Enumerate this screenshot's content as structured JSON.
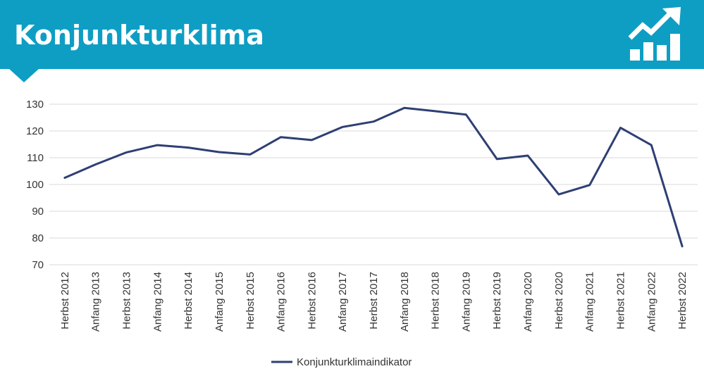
{
  "header": {
    "title": "Konjunkturklima",
    "icon": "rising-bar-chart-icon",
    "background_color": "#0e9ec4"
  },
  "chart_data": {
    "type": "line",
    "categories": [
      "Herbst 2012",
      "Anfang 2013",
      "Herbst 2013",
      "Anfang 2014",
      "Herbst 2014",
      "Anfang 2015",
      "Herbst 2015",
      "Anfang 2016",
      "Herbst 2016",
      "Anfang 2017",
      "Herbst 2017",
      "Anfang 2018",
      "Herbst 2018",
      "Anfang 2019",
      "Herbst 2019",
      "Anfang 2020",
      "Herbst 2020",
      "Anfang 2021",
      "Herbst 2021",
      "Anfang 2022",
      "Herbst 2022"
    ],
    "series": [
      {
        "name": "Konjunkturklimaindikator",
        "color": "#2e3f73",
        "values": [
          102.5,
          107.5,
          112,
          114.7,
          113.8,
          112.1,
          111.2,
          117.7,
          116.6,
          121.5,
          123.5,
          128.6,
          127.4,
          126.1,
          109.5,
          110.8,
          96.3,
          99.8,
          121.2,
          114.7,
          76.9
        ]
      }
    ],
    "ylim": [
      70,
      130
    ],
    "yticks": [
      70,
      80,
      90,
      100,
      110,
      120,
      130
    ],
    "grid": true,
    "legend_position": "bottom",
    "title": "",
    "xlabel": "",
    "ylabel": ""
  }
}
